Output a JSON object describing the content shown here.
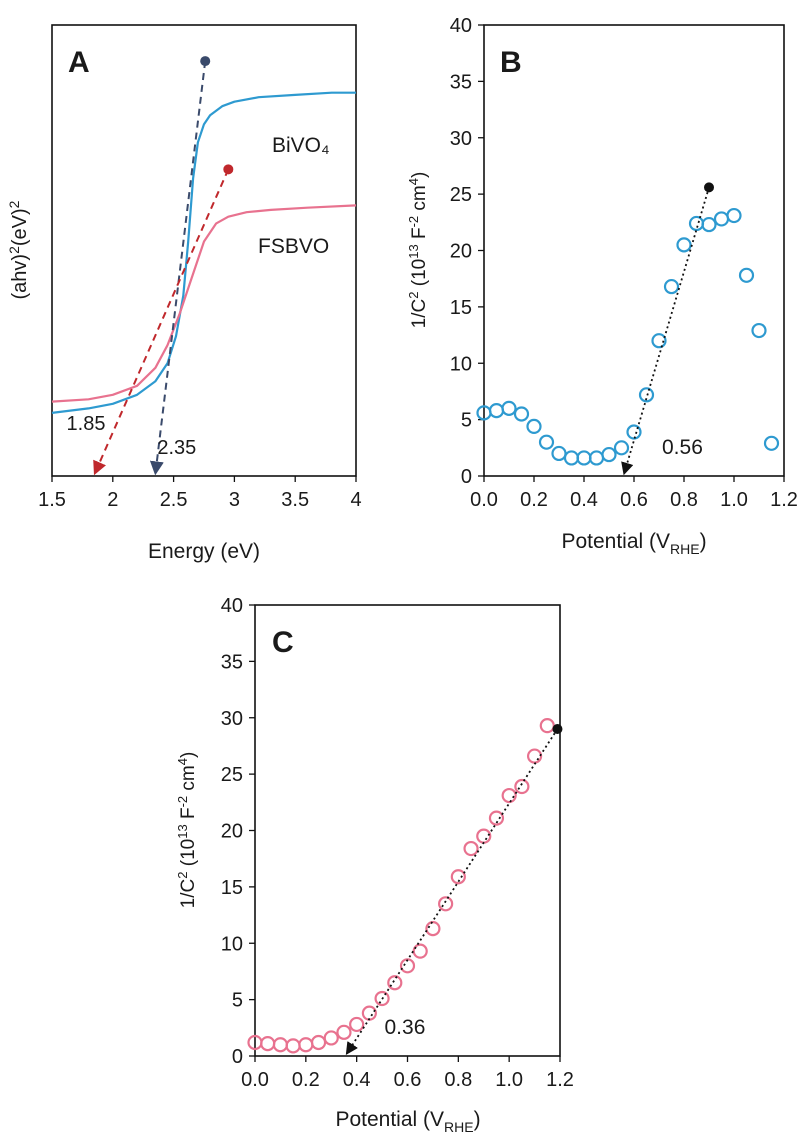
{
  "chart_data": [
    {
      "panel": "A",
      "type": "line",
      "xlabel": "Energy (eV)",
      "ylabel": "(ahv)²(eV)²",
      "xlim": [
        1.5,
        4
      ],
      "x_ticks": [
        "1.5",
        "2",
        "2.5",
        "3",
        "3.5",
        "4"
      ],
      "y_ticks_visible": false,
      "series": [
        {
          "name": "BiVO₄",
          "color": "#2e9ad0",
          "x": [
            1.5,
            1.8,
            2.0,
            2.2,
            2.35,
            2.45,
            2.52,
            2.58,
            2.62,
            2.66,
            2.7,
            2.75,
            2.8,
            2.9,
            3.0,
            3.2,
            3.5,
            3.8,
            4.0
          ],
          "y": [
            0.14,
            0.15,
            0.16,
            0.18,
            0.21,
            0.25,
            0.31,
            0.4,
            0.52,
            0.66,
            0.74,
            0.78,
            0.8,
            0.82,
            0.83,
            0.84,
            0.845,
            0.85,
            0.85
          ]
        },
        {
          "name": "FSBVO",
          "color": "#e8728f",
          "x": [
            1.5,
            1.8,
            2.0,
            2.2,
            2.35,
            2.45,
            2.55,
            2.65,
            2.75,
            2.85,
            2.95,
            3.1,
            3.3,
            3.6,
            4.0
          ],
          "y": [
            0.165,
            0.17,
            0.18,
            0.2,
            0.24,
            0.29,
            0.36,
            0.44,
            0.52,
            0.56,
            0.575,
            0.585,
            0.59,
            0.595,
            0.6
          ]
        }
      ],
      "extrapolations": [
        {
          "label": "2.35",
          "color": "#3a4a6b",
          "from": [
            2.76,
            0.92
          ],
          "to": [
            2.35,
            0.0
          ]
        },
        {
          "label": "1.85",
          "color": "#c0282c",
          "from": [
            2.95,
            0.68
          ],
          "to": [
            1.85,
            0.0
          ]
        }
      ]
    },
    {
      "panel": "B",
      "type": "scatter",
      "xlabel": "Potential (VRHE)",
      "ylabel": "1/C² (10¹³ F⁻² cm⁴)",
      "xlim": [
        0,
        1.2
      ],
      "ylim": [
        0,
        40
      ],
      "x_ticks": [
        "0.0",
        "0.2",
        "0.4",
        "0.6",
        "0.8",
        "1.0",
        "1.2"
      ],
      "y_ticks": [
        "0",
        "5",
        "10",
        "15",
        "20",
        "25",
        "30",
        "35",
        "40"
      ],
      "series": [
        {
          "color": "#2e9ad0",
          "x": [
            0.0,
            0.05,
            0.1,
            0.15,
            0.2,
            0.25,
            0.3,
            0.35,
            0.4,
            0.45,
            0.5,
            0.55,
            0.6,
            0.65,
            0.7,
            0.75,
            0.8,
            0.85,
            0.9,
            0.95,
            1.0,
            1.05,
            1.1,
            1.15
          ],
          "y": [
            5.6,
            5.8,
            6.0,
            5.5,
            4.4,
            3.0,
            2.0,
            1.6,
            1.6,
            1.6,
            1.9,
            2.5,
            3.9,
            7.2,
            12.0,
            16.8,
            20.5,
            22.4,
            22.3,
            22.8,
            23.1,
            17.8,
            12.9,
            2.9
          ]
        }
      ],
      "fit_line": {
        "from": [
          0.9,
          25.6
        ],
        "to": [
          0.56,
          0.0
        ],
        "label": "0.56"
      }
    },
    {
      "panel": "C",
      "type": "scatter",
      "xlabel": "Potential (VRHE)",
      "ylabel": "1/C² (10¹³ F⁻² cm⁴)",
      "xlim": [
        0,
        1.2
      ],
      "ylim": [
        0,
        40
      ],
      "x_ticks": [
        "0.0",
        "0.2",
        "0.4",
        "0.6",
        "0.8",
        "1.0",
        "1.2"
      ],
      "y_ticks": [
        "0",
        "5",
        "10",
        "15",
        "20",
        "25",
        "30",
        "35",
        "40"
      ],
      "series": [
        {
          "color": "#e8728f",
          "x": [
            0.0,
            0.05,
            0.1,
            0.15,
            0.2,
            0.25,
            0.3,
            0.35,
            0.4,
            0.45,
            0.5,
            0.55,
            0.6,
            0.65,
            0.7,
            0.75,
            0.8,
            0.85,
            0.9,
            0.95,
            1.0,
            1.05,
            1.1,
            1.15
          ],
          "y": [
            1.2,
            1.1,
            1.0,
            0.9,
            1.0,
            1.2,
            1.6,
            2.1,
            2.8,
            3.8,
            5.1,
            6.5,
            8.0,
            9.3,
            11.3,
            13.5,
            15.9,
            18.4,
            19.5,
            21.1,
            23.1,
            23.9,
            26.6,
            29.3
          ]
        }
      ],
      "fit_line": {
        "from": [
          1.19,
          29.0
        ],
        "to": [
          0.36,
          0.0
        ],
        "label": "0.36"
      }
    }
  ],
  "panel_letters": {
    "a": "A",
    "b": "B",
    "c": "C"
  },
  "labels": {
    "bivo4": "BiVO₄",
    "fsbvo": "FSBVO",
    "energy": "Energy (eV)",
    "potential": "Potential (VRHE)"
  }
}
